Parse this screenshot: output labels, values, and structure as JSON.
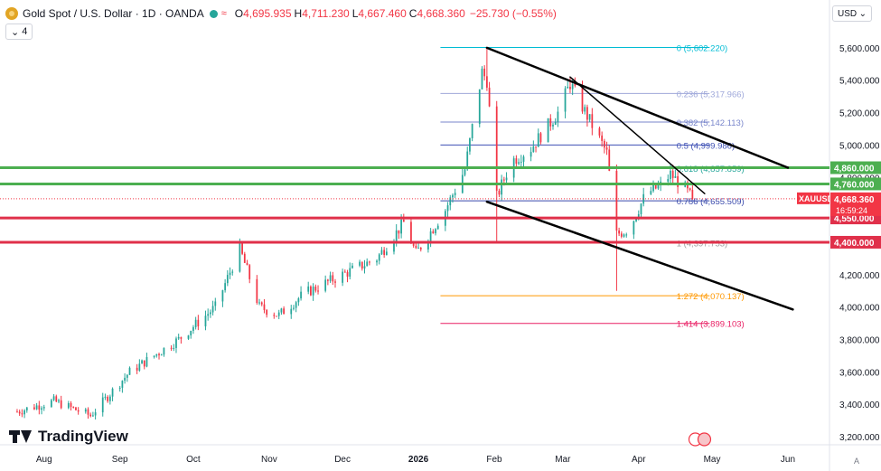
{
  "header": {
    "symbol_line": "Gold Spot / U.S. Dollar · 1D · OANDA",
    "open_label": "O",
    "open": "4,695.935",
    "high_label": "H",
    "high": "4,711.230",
    "low_label": "L",
    "low": "4,667.460",
    "close_label": "C",
    "close": "4,668.360",
    "change": "−25.730 (−0.55%)",
    "indicator_count": "4",
    "currency": "USD"
  },
  "logo": {
    "text": "TradingView"
  },
  "colors": {
    "up": "#26a69a",
    "down": "#f23645",
    "green_level": "#4caf50",
    "red_level": "#e0304a",
    "price_line": "#1e3a8a",
    "text": "#131722"
  },
  "chart_data": {
    "type": "candlestick",
    "symbol": "XAUUSD",
    "ylim": [
      3150,
      5750
    ],
    "y_ticks": [
      3200,
      3400,
      3600,
      3800,
      4000,
      4200,
      4400,
      4600,
      4800,
      5000,
      5200,
      5400,
      5600
    ],
    "y_tick_labels": [
      "3,200.000",
      "3,400.000",
      "3,600.000",
      "3,800.000",
      "4,000.000",
      "4,200.000",
      "4,400.000",
      "4,600.000",
      "4,800.000",
      "5,000.000",
      "5,200.000",
      "5,400.000",
      "5,600.000"
    ],
    "x_labels": [
      {
        "label": "Aug",
        "date": "2025-08-01"
      },
      {
        "label": "Sep",
        "date": "2025-09-01"
      },
      {
        "label": "Oct",
        "date": "2025-10-01"
      },
      {
        "label": "Nov",
        "date": "2025-11-01"
      },
      {
        "label": "Dec",
        "date": "2025-12-01"
      },
      {
        "label": "2026",
        "date": "2026-01-01"
      },
      {
        "label": "Feb",
        "date": "2026-02-01"
      },
      {
        "label": "Mar",
        "date": "2026-03-01"
      },
      {
        "label": "Apr",
        "date": "2026-04-01"
      },
      {
        "label": "May",
        "date": "2026-05-01"
      },
      {
        "label": "Jun",
        "date": "2026-06-01"
      }
    ],
    "anchors": [
      {
        "date": "2025-07-20",
        "close": 3350
      },
      {
        "date": "2025-08-05",
        "close": 3420
      },
      {
        "date": "2025-08-20",
        "close": 3330
      },
      {
        "date": "2025-09-05",
        "close": 3600
      },
      {
        "date": "2025-09-25",
        "close": 3800
      },
      {
        "date": "2025-10-10",
        "close": 4000
      },
      {
        "date": "2025-10-20",
        "close": 4360
      },
      {
        "date": "2025-10-28",
        "close": 4000
      },
      {
        "date": "2025-11-05",
        "close": 3950
      },
      {
        "date": "2025-11-15",
        "close": 4080
      },
      {
        "date": "2025-12-01",
        "close": 4200
      },
      {
        "date": "2025-12-15",
        "close": 4300
      },
      {
        "date": "2025-12-26",
        "close": 4520
      },
      {
        "date": "2025-12-31",
        "close": 4330
      },
      {
        "date": "2026-01-12",
        "close": 4600
      },
      {
        "date": "2026-01-20",
        "close": 4850
      },
      {
        "date": "2026-01-27",
        "close": 5450
      },
      {
        "date": "2026-01-29",
        "close": 5400
      },
      {
        "date": "2026-02-02",
        "close": 4680
      },
      {
        "date": "2026-02-08",
        "close": 4900
      },
      {
        "date": "2026-02-16",
        "close": 4980
      },
      {
        "date": "2026-02-27",
        "close": 5200
      },
      {
        "date": "2026-03-04",
        "close": 5380
      },
      {
        "date": "2026-03-12",
        "close": 5150
      },
      {
        "date": "2026-03-19",
        "close": 4950
      },
      {
        "date": "2026-03-23",
        "close": 4450
      },
      {
        "date": "2026-03-28",
        "close": 4480
      },
      {
        "date": "2026-04-04",
        "close": 4700
      },
      {
        "date": "2026-04-10",
        "close": 4750
      },
      {
        "date": "2026-04-14",
        "close": 4820
      },
      {
        "date": "2026-04-20",
        "close": 4730
      },
      {
        "date": "2026-04-23",
        "close": 4668
      }
    ],
    "spikes": [
      {
        "date": "2026-01-29",
        "high": 5602
      },
      {
        "date": "2026-02-02",
        "low": 4400
      },
      {
        "date": "2026-03-23",
        "low": 4100
      },
      {
        "date": "2026-03-04",
        "high": 5420
      }
    ],
    "fib_levels": [
      {
        "ratio_label": "0",
        "value": 5602.22,
        "color": "#00bcd4"
      },
      {
        "ratio_label": "0.236",
        "value": 5317.966,
        "color": "#9fa8da"
      },
      {
        "ratio_label": "0.382",
        "value": 5142.113,
        "color": "#7986cb"
      },
      {
        "ratio_label": "0.5",
        "value": 4999.986,
        "color": "#3f51b5"
      },
      {
        "ratio_label": "0.618",
        "value": 4857.859,
        "color": "#26a69a"
      },
      {
        "ratio_label": "0.786",
        "value": 4655.509,
        "color": "#3949ab"
      },
      {
        "ratio_label": "1",
        "value": 4397.753,
        "color": "#9e9e9e"
      },
      {
        "ratio_label": "1.272",
        "value": 4070.137,
        "color": "#ff9800"
      },
      {
        "ratio_label": "1.414",
        "value": 3899.103,
        "color": "#e91e63"
      }
    ],
    "fib_labels": [
      "0 (5,602.220)",
      "0.236 (5,317.966)",
      "0.382 (5,142.113)",
      "0.5 (4,999.986)",
      "0.618 (4,857.859)",
      "0.786 (4,655.509)",
      "1 (4,397.753)",
      "1.272 (4,070.137)",
      "1.414 (3,899.103)"
    ],
    "horizontal_levels": [
      {
        "value": 4860,
        "label": "4,860.000",
        "color": "#4caf50"
      },
      {
        "value": 4760,
        "label": "4,760.000",
        "color": "#4caf50"
      },
      {
        "value": 4550,
        "label": "4,550.000",
        "color": "#e0304a"
      },
      {
        "value": 4400,
        "label": "4,400.000",
        "color": "#e0304a"
      }
    ],
    "trendlines": [
      {
        "x1": "2026-01-29",
        "y1": 5600,
        "x2": "2026-06-01",
        "y2": 4860,
        "width": 2.5
      },
      {
        "x1": "2026-01-29",
        "y1": 4650,
        "x2": "2026-06-03",
        "y2": 3985,
        "width": 2.5
      },
      {
        "x1": "2026-03-04",
        "y1": 5420,
        "x2": "2026-04-28",
        "y2": 4700,
        "width": 1.5
      }
    ],
    "current_price": {
      "value": 4668.36,
      "symbol": "XAUUSD",
      "label": "4,668.360",
      "countdown": "16:59:24"
    },
    "x_range": [
      "2025-07-14",
      "2026-06-18"
    ]
  }
}
